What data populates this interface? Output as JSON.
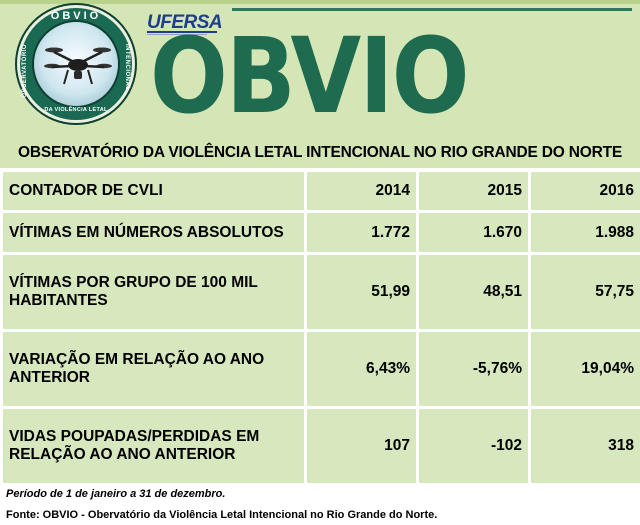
{
  "logo": {
    "badge_top": "OBVIO",
    "badge_left": "OBSERVATÓRIO",
    "badge_right": "INTENCIONAL",
    "badge_bottom": "DA VIOLÊNCIA LETAL",
    "university": "UFERSA",
    "brand": "OBVIO"
  },
  "title": "OBSERVATÓRIO DA VIOLÊNCIA LETAL INTENCIONAL NO RIO GRANDE DO NORTE",
  "table": {
    "header": [
      "CONTADOR DE CVLI",
      "2014",
      "2015",
      "2016"
    ],
    "rows": [
      [
        "VÍTIMAS EM NÚMEROS ABSOLUTOS",
        "1.772",
        "1.670",
        "1.988"
      ],
      [
        "VÍTIMAS POR GRUPO DE 100 MIL HABITANTES",
        "51,99",
        "48,51",
        "57,75"
      ],
      [
        "VARIAÇÃO EM RELAÇÃO AO ANO ANTERIOR",
        "6,43%",
        "-5,76%",
        "19,04%"
      ],
      [
        "VIDAS POUPADAS/PERDIDAS EM RELAÇÃO AO ANO ANTERIOR",
        "107",
        "-102",
        "318"
      ]
    ]
  },
  "footer": {
    "period": "Período de 1 de janeiro a 31 de dezembro.",
    "source": "Fonte: OBVIO - Obervatório da Violência Letal Intencional no Rio Grande do Norte."
  }
}
